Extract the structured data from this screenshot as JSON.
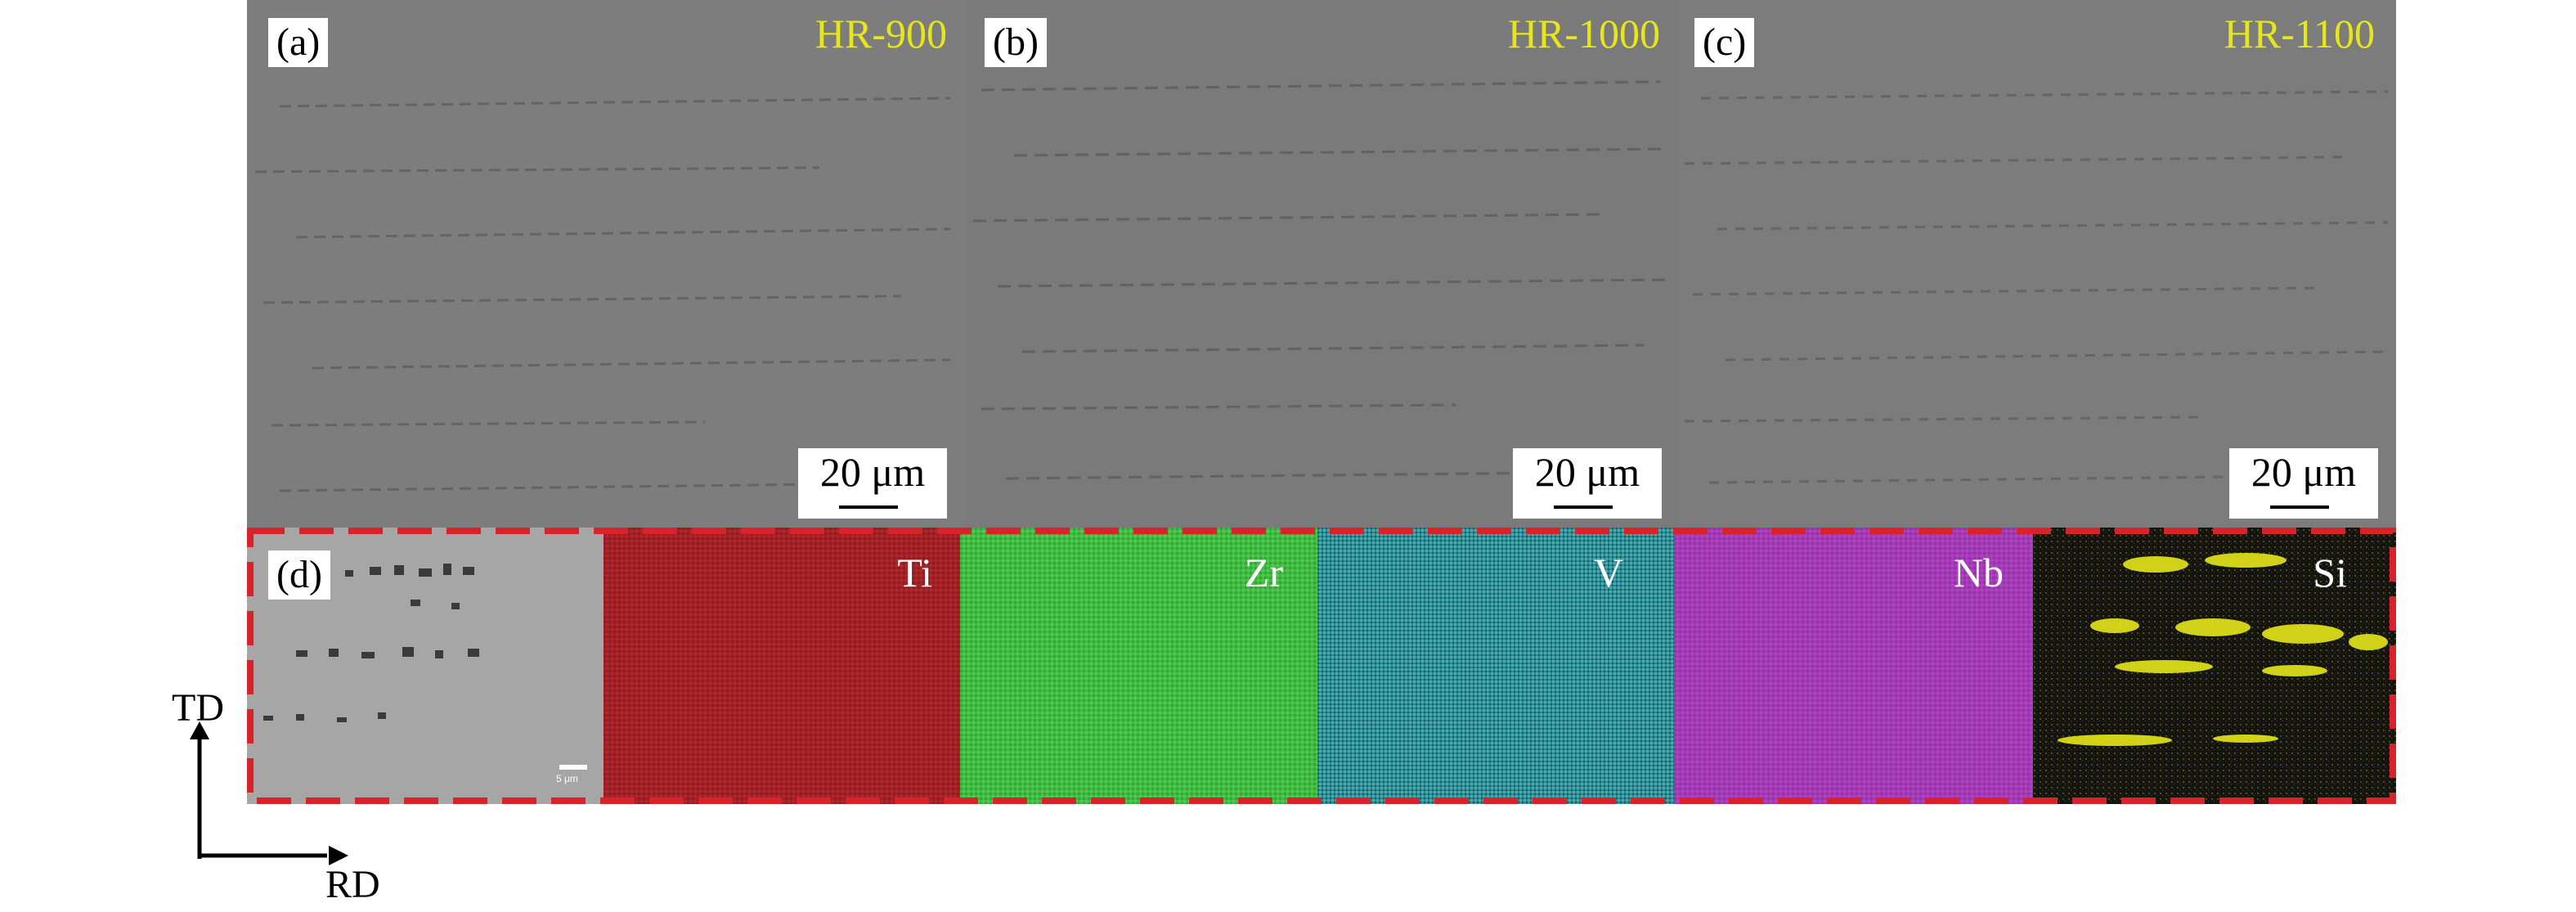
{
  "panels": [
    {
      "label": "(a)",
      "condition": "HR-900",
      "scale_bar": "20 μm"
    },
    {
      "label": "(b)",
      "condition": "HR-1000",
      "scale_bar": "20 μm"
    },
    {
      "label": "(c)",
      "condition": "HR-1100",
      "scale_bar": "20 μm"
    }
  ],
  "eds": {
    "label": "(d)",
    "sem_scale_bar": "5 μm",
    "maps": [
      {
        "element": "Ti",
        "color": "#a51f24"
      },
      {
        "element": "Zr",
        "color": "#3fbf3f"
      },
      {
        "element": "V",
        "color": "#2a8a92"
      },
      {
        "element": "Nb",
        "color": "#a63aba"
      },
      {
        "element": "Si",
        "color": "#e6e61a"
      }
    ],
    "frame_color": "#d8232a"
  },
  "axes": {
    "vertical": "TD",
    "horizontal": "RD"
  }
}
